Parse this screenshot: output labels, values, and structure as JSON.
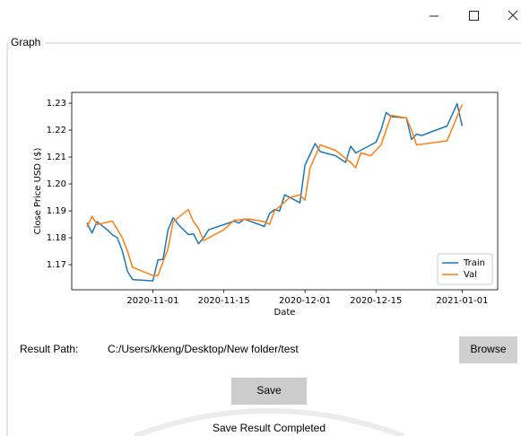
{
  "window": {
    "group_title": "Graph"
  },
  "chart_data": {
    "type": "line",
    "y_label": "Close Price USD ($)",
    "x_label": "Date",
    "xlim": [
      "2020-10-16",
      "2021-01-08"
    ],
    "xticks": [
      "2020-11-01",
      "2020-11-15",
      "2020-12-01",
      "2020-12-15",
      "2021-01-01"
    ],
    "ylim": [
      1.1607,
      1.234
    ],
    "yticks": [
      1.17,
      1.18,
      1.19,
      {
        "value": 1.2,
        "label": "1.20"
      },
      1.21,
      1.22,
      1.23
    ],
    "legend": "lower right",
    "series": [
      {
        "name": "Train",
        "color": "#1f77b4",
        "x": [
          "2020-10-19",
          "2020-10-20",
          "2020-10-21",
          "2020-10-22",
          "2020-10-23",
          "2020-10-24",
          "2020-10-25",
          "2020-10-26",
          "2020-10-27",
          "2020-10-28",
          "2020-11-01",
          "2020-11-02",
          "2020-11-03",
          "2020-11-04",
          "2020-11-05",
          "2020-11-06",
          "2020-11-08",
          "2020-11-09",
          "2020-11-10",
          "2020-11-11",
          "2020-11-12",
          "2020-11-17",
          "2020-11-18",
          "2020-11-19",
          "2020-11-23",
          "2020-11-24",
          "2020-11-25",
          "2020-11-26",
          "2020-11-27",
          "2020-11-30",
          "2020-12-01",
          "2020-12-02",
          "2020-12-03",
          "2020-12-04",
          "2020-12-07",
          "2020-12-09",
          "2020-12-10",
          "2020-12-11",
          "2020-12-15",
          "2020-12-16",
          "2020-12-17",
          "2020-12-18",
          "2020-12-21",
          "2020-12-22",
          "2020-12-23",
          "2020-12-24",
          "2020-12-29",
          "2020-12-31",
          "2021-01-01"
        ],
        "values": [
          1.1855,
          1.1818,
          1.186,
          1.1845,
          1.183,
          1.1812,
          1.18,
          1.175,
          1.1675,
          1.1645,
          1.164,
          1.1718,
          1.172,
          1.183,
          1.1875,
          1.185,
          1.1812,
          1.1815,
          1.1778,
          1.18,
          1.183,
          1.1862,
          1.1855,
          1.187,
          1.1842,
          1.189,
          1.1905,
          1.19,
          1.196,
          1.193,
          1.207,
          1.211,
          1.215,
          1.212,
          1.2105,
          1.208,
          1.214,
          1.2115,
          1.2155,
          1.22,
          1.2265,
          1.225,
          1.2245,
          1.2165,
          1.2185,
          1.218,
          1.2215,
          1.2298,
          1.2215
        ]
      },
      {
        "name": "Val",
        "color": "#ff7f0e",
        "x": [
          "2020-10-19",
          "2020-10-20",
          "2020-10-21",
          "2020-10-24",
          "2020-10-26",
          "2020-10-27",
          "2020-10-28",
          "2020-11-01",
          "2020-11-02",
          "2020-11-04",
          "2020-11-05",
          "2020-11-08",
          "2020-11-09",
          "2020-11-10",
          "2020-11-11",
          "2020-11-15",
          "2020-11-17",
          "2020-11-20",
          "2020-11-23",
          "2020-11-24",
          "2020-11-25",
          "2020-11-28",
          "2020-11-30",
          "2020-12-01",
          "2020-12-02",
          "2020-12-04",
          "2020-12-07",
          "2020-12-10",
          "2020-12-11",
          "2020-12-12",
          "2020-12-14",
          "2020-12-16",
          "2020-12-18",
          "2020-12-21",
          "2020-12-22",
          "2020-12-23",
          "2020-12-29",
          "2021-01-01"
        ],
        "values": [
          1.184,
          1.188,
          1.185,
          1.1862,
          1.18,
          1.175,
          1.169,
          1.166,
          1.166,
          1.176,
          1.186,
          1.1905,
          1.186,
          1.1835,
          1.179,
          1.183,
          1.1865,
          1.187,
          1.186,
          1.185,
          1.19,
          1.195,
          1.196,
          1.194,
          1.206,
          1.2145,
          1.2125,
          1.208,
          1.206,
          1.2115,
          1.2105,
          1.2145,
          1.2255,
          1.2245,
          1.22,
          1.2145,
          1.216,
          1.2295
        ]
      }
    ]
  },
  "form": {
    "result_path_label": "Result Path:",
    "result_path": "C:/Users/kkeng/Desktop/New folder/test",
    "browse_button": "Browse",
    "save_button": "Save",
    "status": "Save Result Completed"
  }
}
